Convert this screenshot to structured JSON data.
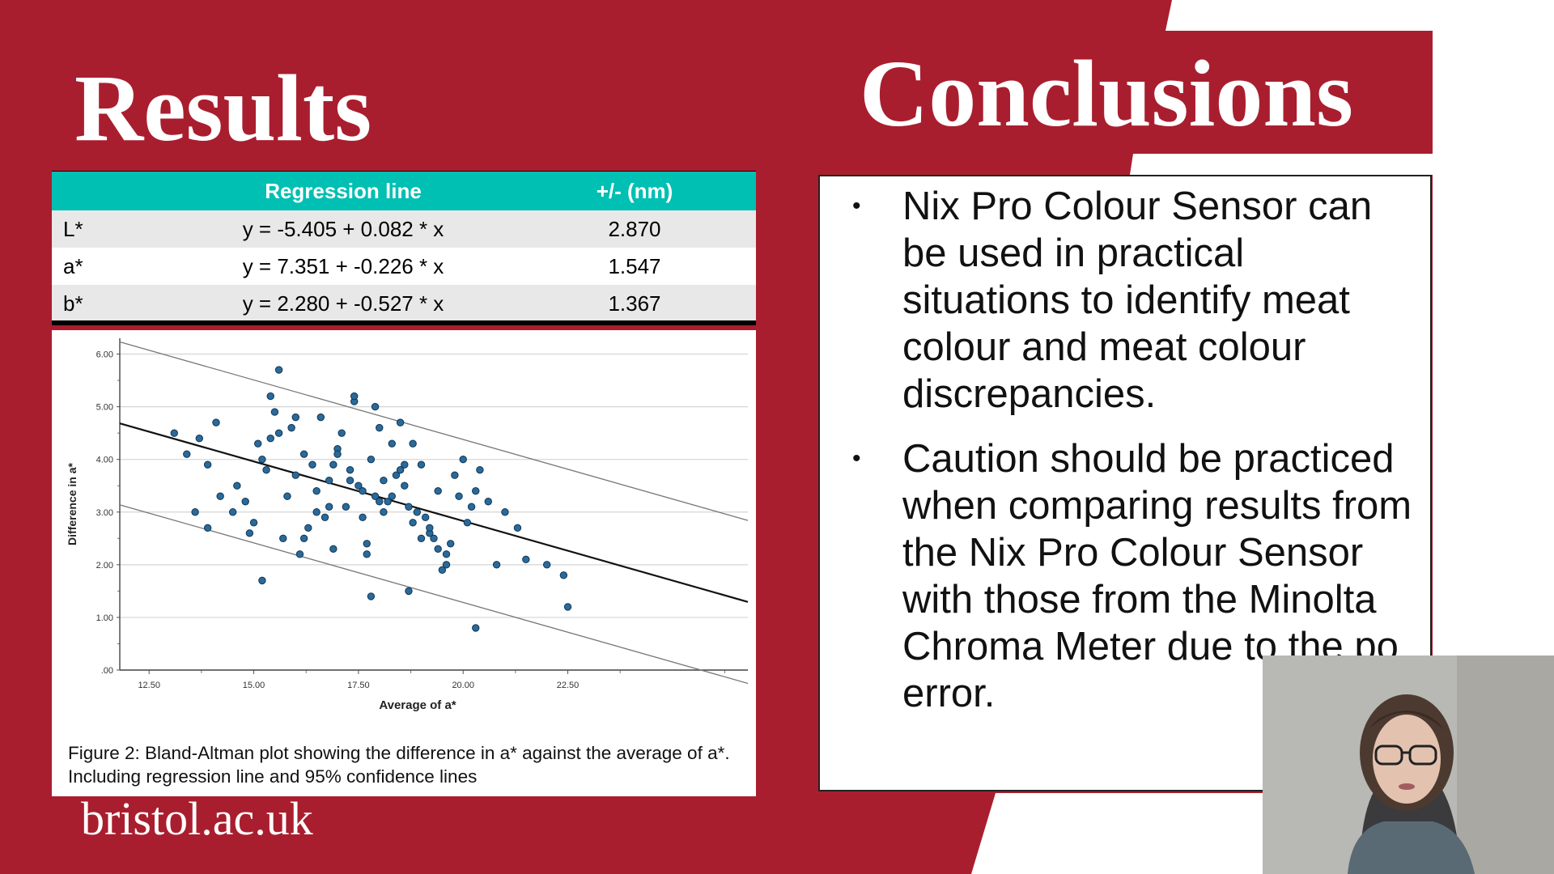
{
  "slide": {
    "results_title": "Results",
    "conclusions_title": "Conclusions",
    "footer_brand": "bristol.ac.uk"
  },
  "table": {
    "headers": [
      "",
      "Regression line",
      "+/- (nm)"
    ],
    "rows": [
      {
        "label": "L*",
        "equation": "y = -5.405 + 0.082 * x",
        "pm": "2.870"
      },
      {
        "label": "a*",
        "equation": "y = 7.351 + -0.226 * x",
        "pm": "1.547"
      },
      {
        "label": "b*",
        "equation": "y = 2.280 + -0.527 * x",
        "pm": "1.367"
      }
    ]
  },
  "figure": {
    "caption": "Figure 2: Bland-Altman plot showing the difference in a* against the average of a*. Including regression line and 95% confidence lines"
  },
  "chart_data": {
    "type": "scatter",
    "xlabel": "Average of a*",
    "ylabel": "Difference in a*",
    "xlim": [
      11.8,
      26.8
    ],
    "ylim": [
      0,
      6.3
    ],
    "x_ticks": [
      "12.50",
      "15.00",
      "17.50",
      "20.00",
      "22.50"
    ],
    "x_tick_values": [
      12.5,
      15.0,
      17.5,
      20.0,
      22.5
    ],
    "y_ticks": [
      ".00",
      "1.00",
      "2.00",
      "3.00",
      "4.00",
      "5.00",
      "6.00"
    ],
    "y_tick_values": [
      0,
      1,
      2,
      3,
      4,
      5,
      6
    ],
    "regression_line": {
      "intercept": 7.351,
      "slope": -0.226
    },
    "confidence_band": 1.547,
    "x": [
      13.1,
      13.4,
      13.6,
      13.9,
      13.7,
      14.1,
      14.6,
      14.8,
      14.2,
      14.9,
      15.1,
      15.3,
      15.5,
      15.0,
      15.6,
      15.8,
      15.2,
      15.9,
      16.0,
      16.2,
      16.4,
      15.4,
      16.5,
      16.6,
      16.8,
      16.3,
      17.0,
      17.2,
      16.9,
      17.4,
      17.5,
      17.1,
      17.6,
      17.8,
      17.3,
      17.9,
      18.0,
      18.2,
      17.7,
      18.4,
      18.1,
      18.5,
      18.6,
      18.8,
      18.3,
      19.0,
      18.7,
      19.2,
      19.4,
      18.9,
      19.6,
      19.1,
      19.8,
      20.0,
      19.3,
      20.2,
      20.4,
      19.7,
      20.6,
      20.8,
      21.0,
      21.3,
      21.5,
      16.2,
      16.7,
      17.3,
      18.0,
      18.6,
      19.2,
      19.9,
      15.7,
      16.5,
      17.0,
      17.7,
      18.3,
      19.0,
      19.6,
      20.3,
      15.2,
      16.1,
      16.9,
      17.8,
      18.7,
      19.5,
      20.1,
      22.0,
      22.4,
      22.5,
      20.3,
      15.4,
      17.9,
      18.8,
      16.0,
      17.4,
      18.1,
      15.6,
      16.8,
      17.6,
      18.5,
      19.4,
      14.5,
      13.9
    ],
    "y": [
      4.5,
      4.1,
      3.0,
      3.9,
      4.4,
      4.7,
      3.5,
      3.2,
      3.3,
      2.6,
      4.3,
      3.8,
      4.9,
      2.8,
      5.7,
      3.3,
      4.0,
      4.6,
      3.7,
      4.1,
      3.9,
      4.4,
      3.4,
      4.8,
      3.6,
      2.7,
      4.2,
      3.1,
      3.9,
      5.1,
      3.5,
      4.5,
      2.9,
      4.0,
      3.8,
      3.3,
      4.6,
      3.2,
      2.4,
      3.7,
      3.0,
      4.7,
      3.5,
      2.8,
      3.3,
      3.9,
      3.1,
      2.6,
      3.4,
      3.0,
      2.2,
      2.9,
      3.7,
      4.0,
      2.5,
      3.1,
      3.8,
      2.4,
      3.2,
      2.0,
      3.0,
      2.7,
      2.1,
      2.5,
      2.9,
      3.6,
      3.2,
      3.9,
      2.7,
      3.3,
      2.5,
      3.0,
      4.1,
      2.2,
      4.3,
      2.5,
      2.0,
      3.4,
      1.7,
      2.2,
      2.3,
      1.4,
      1.5,
      1.9,
      2.8,
      2.0,
      1.8,
      1.2,
      0.8,
      5.2,
      5.0,
      4.3,
      4.8,
      5.2,
      3.6,
      4.5,
      3.1,
      3.4,
      3.8,
      2.3,
      3.0,
      2.7
    ]
  }
}
